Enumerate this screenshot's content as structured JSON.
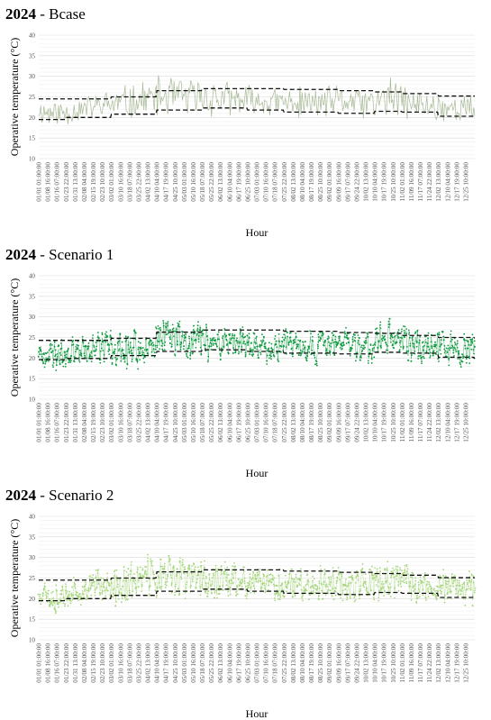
{
  "chart_data": [
    {
      "type": "line",
      "title_bold": "2024",
      "title_rest": " - Bcase",
      "xlabel": "Hour",
      "ylabel": "Operative temperature (°C)",
      "ylim": [
        10,
        40
      ],
      "yticks": [
        10,
        15,
        20,
        25,
        30,
        35,
        40
      ],
      "grid": true,
      "x_tick_labels": [
        "01/01 01:00:00",
        "01/08 16:00:00",
        "01/16 07:00:00",
        "01/23 22:00:00",
        "01/31 13:00:00",
        "02/08 04:00:00",
        "02/15 19:00:00",
        "02/23 10:00:00",
        "03/02 01:00:00",
        "03/10 16:00:00",
        "03/18 07:00:00",
        "03/25 22:00:00",
        "04/02 13:00:00",
        "04/10 04:00:00",
        "04/17 19:00:00",
        "04/25 10:00:00",
        "05/03 01:00:00",
        "05/10 16:00:00",
        "05/18 07:00:00",
        "05/25 22:00:00",
        "06/02 13:00:00",
        "06/10 04:00:00",
        "06/17 19:00:00",
        "06/25 10:00:00",
        "07/03 01:00:00",
        "07/10 16:00:00",
        "07/18 07:00:00",
        "07/25 22:00:00",
        "08/02 13:00:00",
        "08/10 04:00:00",
        "08/17 19:00:00",
        "08/25 10:00:00",
        "09/02 01:00:00",
        "09/09 16:00:00",
        "09/17 07:00:00",
        "09/24 22:00:00",
        "10/02 13:00:00",
        "10/10 04:00:00",
        "10/17 19:00:00",
        "10/25 10:00:00",
        "11/02 01:00:00",
        "11/09 16:00:00",
        "11/17 07:00:00",
        "11/24 22:00:00",
        "12/02 13:00:00",
        "12/10 04:00:00",
        "12/17 19:00:00",
        "12/25 10:00:00"
      ],
      "series": [
        {
          "style": "line",
          "color": "#9fb38c",
          "seed": 11,
          "mean": [
            21.5,
            21.2,
            21.0,
            21.3,
            21.8,
            22.2,
            22.6,
            23.0,
            23.2,
            23.4,
            23.7,
            24.2,
            24.6,
            25.0,
            25.2,
            25.1,
            24.9,
            24.8,
            24.8,
            24.6,
            24.4,
            24.2,
            24.0,
            23.9,
            23.8,
            23.7,
            23.6,
            23.6,
            23.5,
            23.5,
            23.6,
            23.8,
            23.9,
            24.0,
            23.8,
            23.5,
            23.4,
            24.3,
            24.8,
            24.2,
            23.2,
            22.9,
            22.7,
            22.6,
            22.5,
            22.3,
            22.0,
            21.8
          ],
          "amp": [
            3.5,
            3.8,
            4.2,
            3.8,
            3.5,
            3.5,
            3.6,
            3.8,
            4.5,
            4.8,
            5.0,
            5.2,
            5.2,
            5.5,
            5.8,
            5.5,
            5.2,
            5.5,
            5.6,
            5.5,
            5.0,
            4.8,
            4.5,
            4.5,
            4.3,
            4.2,
            4.0,
            4.0,
            4.2,
            4.0,
            4.2,
            4.3,
            4.2,
            4.2,
            4.3,
            4.5,
            4.5,
            4.8,
            5.5,
            5.0,
            4.8,
            4.5,
            4.2,
            4.0,
            4.0,
            4.0,
            4.3,
            4.2
          ]
        },
        {
          "style": "dashed",
          "color": "#111111",
          "steps": [
            [
              0,
              24.5
            ],
            [
              8,
              25.0
            ],
            [
              13,
              26.5
            ],
            [
              18,
              27.0
            ],
            [
              27,
              26.8
            ],
            [
              33,
              26.5
            ],
            [
              37,
              26.2
            ],
            [
              40,
              25.8
            ],
            [
              44,
              25.2
            ],
            [
              48,
              25.2
            ]
          ]
        },
        {
          "style": "dashed",
          "color": "#111111",
          "steps": [
            [
              0,
              19.5
            ],
            [
              3,
              20.0
            ],
            [
              8,
              20.8
            ],
            [
              13,
              21.8
            ],
            [
              18,
              22.3
            ],
            [
              23,
              21.8
            ],
            [
              27,
              21.3
            ],
            [
              33,
              21.0
            ],
            [
              37,
              21.5
            ],
            [
              40,
              21.3
            ],
            [
              44,
              20.3
            ],
            [
              48,
              20.0
            ]
          ]
        }
      ]
    },
    {
      "type": "line",
      "title_bold": "2024",
      "title_rest": " - Scenario 1",
      "xlabel": "Hour",
      "ylabel": "Operative temperature (°C)",
      "ylim": [
        10,
        40
      ],
      "yticks": [
        10,
        15,
        20,
        25,
        30,
        35,
        40
      ],
      "grid": true,
      "x_tick_labels": [
        "01/01 01:00:00",
        "01/08 16:00:00",
        "01/16 07:00:00",
        "01/23 22:00:00",
        "01/31 13:00:00",
        "02/08 04:00:00",
        "02/15 19:00:00",
        "02/23 10:00:00",
        "03/02 01:00:00",
        "03/10 16:00:00",
        "03/18 07:00:00",
        "03/25 22:00:00",
        "04/02 13:00:00",
        "04/10 04:00:00",
        "04/17 19:00:00",
        "04/25 10:00:00",
        "05/03 01:00:00",
        "05/10 16:00:00",
        "05/18 07:00:00",
        "05/25 22:00:00",
        "06/02 13:00:00",
        "06/10 04:00:00",
        "06/17 19:00:00",
        "06/25 10:00:00",
        "07/03 01:00:00",
        "07/10 16:00:00",
        "07/18 07:00:00",
        "07/25 22:00:00",
        "08/02 13:00:00",
        "08/10 04:00:00",
        "08/17 19:00:00",
        "08/25 10:00:00",
        "09/02 01:00:00",
        "09/09 16:00:00",
        "09/17 07:00:00",
        "09/24 22:00:00",
        "10/02 13:00:00",
        "10/10 04:00:00",
        "10/17 19:00:00",
        "10/25 10:00:00",
        "11/02 01:00:00",
        "11/09 16:00:00",
        "11/17 07:00:00",
        "11/24 22:00:00",
        "12/02 13:00:00",
        "12/10 04:00:00",
        "12/17 19:00:00",
        "12/25 10:00:00"
      ],
      "series": [
        {
          "style": "dots",
          "color": "#0e9a3f",
          "seed": 23,
          "mean": [
            21.8,
            21.3,
            21.0,
            21.5,
            22.0,
            22.5,
            23.0,
            23.2,
            22.5,
            21.8,
            22.0,
            22.8,
            23.8,
            24.3,
            24.8,
            25.0,
            24.8,
            24.5,
            24.6,
            24.5,
            24.2,
            24.0,
            23.5,
            23.3,
            23.0,
            22.8,
            22.7,
            22.6,
            22.5,
            22.6,
            22.8,
            23.0,
            23.2,
            23.2,
            23.0,
            22.8,
            23.0,
            24.5,
            25.5,
            24.3,
            23.0,
            22.8,
            22.6,
            22.5,
            22.3,
            22.0,
            21.8,
            21.5
          ],
          "amp": [
            3.0,
            3.5,
            4.0,
            3.5,
            3.2,
            3.5,
            3.5,
            3.8,
            4.5,
            5.0,
            5.2,
            5.0,
            5.0,
            5.2,
            5.0,
            4.8,
            4.8,
            5.0,
            5.0,
            4.8,
            4.5,
            4.5,
            4.2,
            4.2,
            4.0,
            4.0,
            3.8,
            3.8,
            4.0,
            4.0,
            4.0,
            4.2,
            4.2,
            4.2,
            4.2,
            4.2,
            4.2,
            4.5,
            4.5,
            4.2,
            4.2,
            4.0,
            4.0,
            4.0,
            3.8,
            3.8,
            4.0,
            3.8
          ]
        },
        {
          "style": "dashed",
          "color": "#111111",
          "steps": [
            [
              0,
              24.3
            ],
            [
              8,
              24.8
            ],
            [
              13,
              26.3
            ],
            [
              18,
              26.8
            ],
            [
              27,
              26.5
            ],
            [
              33,
              26.2
            ],
            [
              37,
              26.0
            ],
            [
              40,
              25.5
            ],
            [
              44,
              25.0
            ],
            [
              48,
              24.8
            ]
          ]
        },
        {
          "style": "dashed",
          "color": "#111111",
          "steps": [
            [
              0,
              19.6
            ],
            [
              3,
              19.9
            ],
            [
              8,
              20.6
            ],
            [
              13,
              21.6
            ],
            [
              18,
              22.0
            ],
            [
              23,
              21.6
            ],
            [
              27,
              21.2
            ],
            [
              33,
              21.0
            ],
            [
              37,
              21.4
            ],
            [
              40,
              21.2
            ],
            [
              44,
              20.2
            ],
            [
              48,
              19.8
            ]
          ]
        }
      ]
    },
    {
      "type": "line",
      "title_bold": "2024",
      "title_rest": " - Scenario 2",
      "xlabel": "Hour",
      "ylabel": "Operative temperature (°C)",
      "ylim": [
        10,
        40
      ],
      "yticks": [
        10,
        15,
        20,
        25,
        30,
        35,
        40
      ],
      "grid": true,
      "x_tick_labels": [
        "01/01 01:00:00",
        "01/08 16:00:00",
        "01/16 07:00:00",
        "01/23 22:00:00",
        "01/31 13:00:00",
        "02/08 04:00:00",
        "02/15 19:00:00",
        "02/23 10:00:00",
        "03/02 01:00:00",
        "03/10 16:00:00",
        "03/18 07:00:00",
        "03/25 22:00:00",
        "04/02 13:00:00",
        "04/10 04:00:00",
        "04/17 19:00:00",
        "04/25 10:00:00",
        "05/03 01:00:00",
        "05/10 16:00:00",
        "05/18 07:00:00",
        "05/25 22:00:00",
        "06/02 13:00:00",
        "06/10 04:00:00",
        "06/17 19:00:00",
        "06/25 10:00:00",
        "07/03 01:00:00",
        "07/10 16:00:00",
        "07/18 07:00:00",
        "07/25 22:00:00",
        "08/02 13:00:00",
        "08/10 04:00:00",
        "08/17 19:00:00",
        "08/25 10:00:00",
        "09/02 01:00:00",
        "09/09 16:00:00",
        "09/17 07:00:00",
        "09/24 22:00:00",
        "10/02 13:00:00",
        "10/10 04:00:00",
        "10/17 19:00:00",
        "10/25 10:00:00",
        "11/02 01:00:00",
        "11/09 16:00:00",
        "11/17 07:00:00",
        "11/24 22:00:00",
        "12/02 13:00:00",
        "12/10 04:00:00",
        "12/17 19:00:00",
        "12/25 10:00:00"
      ],
      "series": [
        {
          "style": "dots",
          "color": "#a6d67e",
          "seed": 37,
          "mean": [
            21.6,
            21.2,
            21.0,
            21.4,
            21.9,
            22.4,
            22.8,
            23.2,
            23.2,
            23.4,
            23.8,
            24.5,
            25.0,
            25.5,
            25.8,
            25.5,
            25.2,
            25.0,
            25.0,
            24.8,
            24.5,
            24.2,
            24.0,
            23.8,
            23.6,
            23.5,
            23.4,
            23.4,
            23.3,
            23.4,
            23.5,
            23.7,
            23.8,
            23.8,
            23.6,
            23.4,
            23.3,
            24.3,
            25.0,
            24.2,
            23.2,
            22.9,
            22.7,
            22.6,
            22.5,
            22.3,
            22.0,
            21.8
          ],
          "amp": [
            3.5,
            3.8,
            4.2,
            3.8,
            3.5,
            3.5,
            3.6,
            3.8,
            4.2,
            4.5,
            4.8,
            5.0,
            5.0,
            5.5,
            5.8,
            5.5,
            5.2,
            5.2,
            5.3,
            5.2,
            4.8,
            4.6,
            4.5,
            4.4,
            4.2,
            4.1,
            4.0,
            4.0,
            4.1,
            4.0,
            4.1,
            4.2,
            4.2,
            4.2,
            4.2,
            4.3,
            4.3,
            4.5,
            4.8,
            4.6,
            4.5,
            4.3,
            4.1,
            4.0,
            4.0,
            4.0,
            4.2,
            4.1
          ]
        },
        {
          "style": "dashed",
          "color": "#111111",
          "steps": [
            [
              0,
              24.5
            ],
            [
              8,
              25.0
            ],
            [
              13,
              26.5
            ],
            [
              18,
              27.0
            ],
            [
              27,
              26.7
            ],
            [
              33,
              26.4
            ],
            [
              37,
              26.1
            ],
            [
              40,
              25.7
            ],
            [
              44,
              25.1
            ],
            [
              48,
              25.0
            ]
          ]
        },
        {
          "style": "dashed",
          "color": "#111111",
          "steps": [
            [
              0,
              19.5
            ],
            [
              3,
              20.0
            ],
            [
              8,
              20.8
            ],
            [
              13,
              21.8
            ],
            [
              18,
              22.3
            ],
            [
              23,
              21.8
            ],
            [
              27,
              21.3
            ],
            [
              33,
              21.0
            ],
            [
              37,
              21.5
            ],
            [
              40,
              21.3
            ],
            [
              44,
              20.3
            ],
            [
              48,
              20.0
            ]
          ]
        }
      ]
    }
  ]
}
